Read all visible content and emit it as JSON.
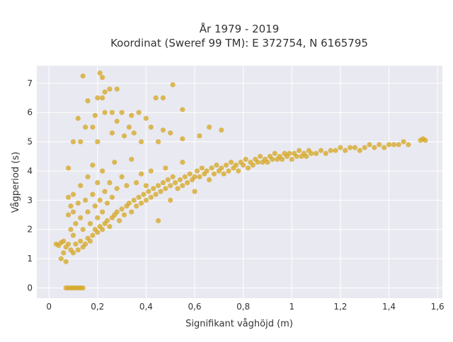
{
  "chart_data": {
    "type": "scatter",
    "title": "År 1979 - 2019",
    "subtitle": "Koordinat (Sweref 99 TM): E 372754, N 6165795",
    "xlabel": "Signifikant våghöjd (m)",
    "ylabel": "Vågperiod (s)",
    "xlim": [
      -0.05,
      1.62
    ],
    "ylim": [
      -0.35,
      7.6
    ],
    "x_ticks": [
      0,
      0.2,
      0.4,
      0.6,
      0.8,
      1,
      1.2,
      1.4,
      1.6
    ],
    "x_tick_labels": [
      "0",
      "0,2",
      "0,4",
      "0,6",
      "0,8",
      "1",
      "1,2",
      "1,4",
      "1,6"
    ],
    "y_ticks": [
      0,
      1,
      2,
      3,
      4,
      5,
      6,
      7
    ],
    "y_tick_labels": [
      "0",
      "1",
      "2",
      "3",
      "4",
      "5",
      "6",
      "7"
    ],
    "grid": true,
    "legend": false,
    "colors": {
      "marker": "#D4A520",
      "plot_bg": "#E9E9F1",
      "grid": "#FFFFFF"
    },
    "series": [
      {
        "points": [
          [
            0.07,
            0
          ],
          [
            0.08,
            0
          ],
          [
            0.09,
            0
          ],
          [
            0.1,
            0
          ],
          [
            0.11,
            0
          ],
          [
            0.12,
            0
          ],
          [
            0.13,
            0
          ],
          [
            0.14,
            0
          ],
          [
            0.03,
            1.5
          ],
          [
            0.04,
            1.45
          ],
          [
            0.05,
            1.55
          ],
          [
            0.06,
            1.6
          ],
          [
            0.07,
            1.4
          ],
          [
            0.08,
            1.5
          ],
          [
            0.08,
            2.5
          ],
          [
            0.08,
            3.1
          ],
          [
            0.09,
            1.3
          ],
          [
            0.09,
            2.0
          ],
          [
            0.09,
            2.8
          ],
          [
            0.1,
            1.2
          ],
          [
            0.1,
            1.8
          ],
          [
            0.1,
            2.6
          ],
          [
            0.1,
            3.2
          ],
          [
            0.11,
            1.5
          ],
          [
            0.11,
            2.2
          ],
          [
            0.12,
            1.3
          ],
          [
            0.12,
            2.9
          ],
          [
            0.13,
            1.6
          ],
          [
            0.13,
            2.4
          ],
          [
            0.13,
            3.5
          ],
          [
            0.14,
            1.4
          ],
          [
            0.14,
            2.0
          ],
          [
            0.15,
            1.5
          ],
          [
            0.15,
            3.0
          ],
          [
            0.16,
            1.7
          ],
          [
            0.16,
            2.6
          ],
          [
            0.16,
            3.8
          ],
          [
            0.17,
            1.6
          ],
          [
            0.17,
            2.2
          ],
          [
            0.18,
            1.8
          ],
          [
            0.18,
            3.2
          ],
          [
            0.18,
            4.2
          ],
          [
            0.19,
            2.0
          ],
          [
            0.19,
            2.8
          ],
          [
            0.2,
            1.9
          ],
          [
            0.2,
            2.4
          ],
          [
            0.2,
            3.6
          ],
          [
            0.21,
            2.1
          ],
          [
            0.21,
            3.0
          ],
          [
            0.22,
            2.0
          ],
          [
            0.22,
            2.6
          ],
          [
            0.22,
            4.0
          ],
          [
            0.23,
            2.2
          ],
          [
            0.23,
            3.3
          ],
          [
            0.24,
            2.3
          ],
          [
            0.24,
            2.9
          ],
          [
            0.25,
            2.1
          ],
          [
            0.25,
            3.6
          ],
          [
            0.26,
            2.4
          ],
          [
            0.26,
            3.1
          ],
          [
            0.27,
            2.5
          ],
          [
            0.27,
            4.3
          ],
          [
            0.28,
            2.6
          ],
          [
            0.28,
            3.4
          ],
          [
            0.29,
            2.3
          ],
          [
            0.3,
            2.7
          ],
          [
            0.3,
            3.8
          ],
          [
            0.31,
            2.5
          ],
          [
            0.32,
            2.8
          ],
          [
            0.32,
            3.5
          ],
          [
            0.33,
            2.9
          ],
          [
            0.34,
            2.6
          ],
          [
            0.34,
            4.4
          ],
          [
            0.35,
            3.0
          ],
          [
            0.36,
            2.8
          ],
          [
            0.36,
            3.6
          ],
          [
            0.37,
            3.1
          ],
          [
            0.38,
            2.9
          ],
          [
            0.38,
            3.9
          ],
          [
            0.39,
            3.2
          ],
          [
            0.4,
            3.0
          ],
          [
            0.4,
            3.5
          ],
          [
            0.41,
            3.3
          ],
          [
            0.42,
            3.1
          ],
          [
            0.42,
            4.0
          ],
          [
            0.43,
            3.4
          ],
          [
            0.44,
            3.2
          ],
          [
            0.45,
            3.5
          ],
          [
            0.45,
            2.3
          ],
          [
            0.46,
            3.3
          ],
          [
            0.47,
            3.6
          ],
          [
            0.48,
            3.4
          ],
          [
            0.48,
            4.1
          ],
          [
            0.49,
            3.7
          ],
          [
            0.5,
            3.5
          ],
          [
            0.5,
            3.0
          ],
          [
            0.51,
            3.8
          ],
          [
            0.52,
            3.6
          ],
          [
            0.53,
            3.4
          ],
          [
            0.54,
            3.7
          ],
          [
            0.55,
            3.5
          ],
          [
            0.55,
            4.3
          ],
          [
            0.56,
            3.8
          ],
          [
            0.57,
            3.6
          ],
          [
            0.58,
            3.9
          ],
          [
            0.59,
            3.7
          ],
          [
            0.6,
            3.8
          ],
          [
            0.6,
            3.3
          ],
          [
            0.61,
            4.0
          ],
          [
            0.62,
            3.8
          ],
          [
            0.63,
            4.1
          ],
          [
            0.64,
            3.9
          ],
          [
            0.65,
            4.0
          ],
          [
            0.66,
            3.7
          ],
          [
            0.67,
            4.1
          ],
          [
            0.68,
            3.9
          ],
          [
            0.69,
            4.2
          ],
          [
            0.7,
            4.0
          ],
          [
            0.71,
            4.1
          ],
          [
            0.72,
            3.9
          ],
          [
            0.73,
            4.2
          ],
          [
            0.74,
            4.0
          ],
          [
            0.75,
            4.3
          ],
          [
            0.76,
            4.1
          ],
          [
            0.77,
            4.2
          ],
          [
            0.78,
            4.0
          ],
          [
            0.79,
            4.3
          ],
          [
            0.8,
            4.2
          ],
          [
            0.81,
            4.4
          ],
          [
            0.82,
            4.1
          ],
          [
            0.83,
            4.3
          ],
          [
            0.84,
            4.2
          ],
          [
            0.85,
            4.4
          ],
          [
            0.86,
            4.3
          ],
          [
            0.87,
            4.5
          ],
          [
            0.88,
            4.3
          ],
          [
            0.89,
            4.4
          ],
          [
            0.9,
            4.3
          ],
          [
            0.91,
            4.5
          ],
          [
            0.92,
            4.4
          ],
          [
            0.93,
            4.6
          ],
          [
            0.94,
            4.4
          ],
          [
            0.95,
            4.5
          ],
          [
            0.96,
            4.4
          ],
          [
            0.97,
            4.6
          ],
          [
            0.98,
            4.5
          ],
          [
            0.99,
            4.6
          ],
          [
            1.0,
            4.4
          ],
          [
            1.01,
            4.6
          ],
          [
            1.02,
            4.5
          ],
          [
            1.03,
            4.7
          ],
          [
            1.04,
            4.5
          ],
          [
            1.05,
            4.6
          ],
          [
            1.06,
            4.5
          ],
          [
            1.07,
            4.7
          ],
          [
            1.08,
            4.6
          ],
          [
            1.1,
            4.6
          ],
          [
            1.12,
            4.7
          ],
          [
            1.14,
            4.6
          ],
          [
            1.16,
            4.7
          ],
          [
            1.18,
            4.7
          ],
          [
            1.2,
            4.8
          ],
          [
            1.22,
            4.7
          ],
          [
            1.24,
            4.8
          ],
          [
            1.26,
            4.8
          ],
          [
            1.28,
            4.7
          ],
          [
            1.3,
            4.8
          ],
          [
            1.32,
            4.9
          ],
          [
            1.34,
            4.8
          ],
          [
            1.36,
            4.9
          ],
          [
            1.38,
            4.8
          ],
          [
            1.4,
            4.9
          ],
          [
            1.42,
            4.9
          ],
          [
            1.44,
            4.9
          ],
          [
            1.46,
            5.0
          ],
          [
            1.48,
            4.9
          ],
          [
            1.53,
            5.05
          ],
          [
            1.54,
            5.1
          ],
          [
            1.55,
            5.05
          ],
          [
            0.21,
            7.35
          ],
          [
            0.14,
            7.25
          ],
          [
            0.22,
            7.2
          ],
          [
            0.25,
            6.8
          ],
          [
            0.23,
            6.7
          ],
          [
            0.16,
            6.4
          ],
          [
            0.2,
            6.5
          ],
          [
            0.22,
            6.5
          ],
          [
            0.51,
            6.95
          ],
          [
            0.44,
            6.5
          ],
          [
            0.47,
            6.5
          ],
          [
            0.55,
            6.1
          ],
          [
            0.3,
            6.0
          ],
          [
            0.34,
            5.9
          ],
          [
            0.4,
            5.8
          ],
          [
            0.28,
            5.7
          ],
          [
            0.33,
            5.5
          ],
          [
            0.42,
            5.5
          ],
          [
            0.47,
            5.4
          ],
          [
            0.19,
            5.9
          ],
          [
            0.12,
            5.8
          ],
          [
            0.15,
            5.5
          ],
          [
            0.18,
            5.5
          ],
          [
            0.26,
            5.3
          ],
          [
            0.35,
            5.3
          ],
          [
            0.5,
            5.3
          ],
          [
            0.66,
            5.5
          ],
          [
            0.71,
            5.4
          ],
          [
            0.55,
            5.1
          ],
          [
            0.62,
            5.2
          ],
          [
            0.45,
            5.0
          ],
          [
            0.38,
            5.0
          ],
          [
            0.2,
            5.0
          ],
          [
            0.1,
            5.0
          ],
          [
            0.13,
            5.0
          ],
          [
            0.31,
            5.2
          ],
          [
            0.37,
            6.0
          ],
          [
            0.26,
            6.0
          ],
          [
            0.28,
            6.8
          ],
          [
            0.23,
            6.0
          ],
          [
            0.08,
            4.1
          ],
          [
            0.05,
            1.0
          ],
          [
            0.06,
            1.2
          ],
          [
            0.07,
            0.9
          ]
        ]
      }
    ]
  }
}
